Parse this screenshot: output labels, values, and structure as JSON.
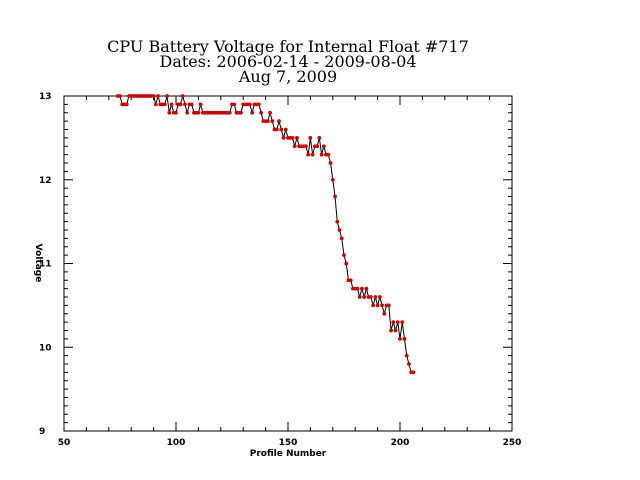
{
  "chart_data": {
    "type": "line",
    "title_lines": [
      "CPU Battery Voltage for Internal Float #717",
      "Dates:  2006-02-14 -  2009-08-04",
      "Aug  7, 2009"
    ],
    "xlabel": "Profile Number",
    "ylabel": "Voltage",
    "xlim": [
      50,
      250
    ],
    "ylim": [
      9,
      13
    ],
    "xticks": [
      50,
      100,
      150,
      200,
      250
    ],
    "yticks": [
      9,
      10,
      11,
      12,
      13
    ],
    "x_tick_labels": [
      "50",
      "100",
      "150",
      "200",
      "250"
    ],
    "y_tick_labels": [
      "9",
      "10",
      "11",
      "12",
      "13"
    ],
    "grid": false,
    "colors": {
      "line": "#000000",
      "markers": "#cc0000"
    },
    "series": [
      {
        "x": [
          74,
          75,
          76,
          77,
          78,
          79,
          80,
          81,
          82,
          83,
          84,
          85,
          86,
          87,
          88,
          89,
          90,
          91,
          92,
          93,
          94,
          95,
          96,
          97,
          98,
          99,
          100,
          101,
          102,
          103,
          104,
          105,
          106,
          107,
          108,
          109,
          110,
          111,
          112,
          113,
          114,
          115,
          116,
          117,
          118,
          119,
          120,
          121,
          122,
          123,
          124,
          125,
          126,
          127,
          128,
          129,
          130,
          131,
          132,
          133,
          134,
          135,
          136,
          137,
          138,
          139,
          140,
          141,
          142,
          143,
          144,
          145,
          146,
          147,
          148,
          149,
          150,
          151,
          152,
          153,
          154,
          155,
          156,
          157,
          158,
          159,
          160,
          161,
          162,
          163,
          164,
          165,
          166,
          167,
          168,
          169,
          170,
          171,
          172,
          173,
          174,
          175,
          176,
          177,
          178,
          179,
          180,
          181,
          182,
          183,
          184,
          185,
          186,
          187,
          188,
          189,
          190,
          191,
          192,
          193,
          194,
          195,
          196,
          197,
          198,
          199,
          200,
          201,
          202,
          203,
          204,
          205,
          206
        ],
        "y": [
          13.0,
          13.0,
          12.9,
          12.9,
          12.9,
          13.0,
          13.0,
          13.0,
          13.0,
          13.0,
          13.0,
          13.0,
          13.0,
          13.0,
          13.0,
          13.0,
          13.0,
          12.9,
          13.0,
          12.9,
          12.9,
          12.9,
          13.0,
          12.8,
          12.9,
          12.8,
          12.8,
          12.9,
          12.9,
          13.0,
          12.9,
          12.8,
          12.9,
          12.9,
          12.8,
          12.8,
          12.8,
          12.9,
          12.8,
          12.8,
          12.8,
          12.8,
          12.8,
          12.8,
          12.8,
          12.8,
          12.8,
          12.8,
          12.8,
          12.8,
          12.8,
          12.9,
          12.9,
          12.8,
          12.8,
          12.8,
          12.9,
          12.9,
          12.9,
          12.9,
          12.8,
          12.9,
          12.9,
          12.9,
          12.8,
          12.7,
          12.7,
          12.7,
          12.8,
          12.7,
          12.6,
          12.6,
          12.7,
          12.6,
          12.5,
          12.6,
          12.5,
          12.5,
          12.5,
          12.4,
          12.5,
          12.4,
          12.4,
          12.4,
          12.4,
          12.3,
          12.5,
          12.3,
          12.4,
          12.4,
          12.5,
          12.3,
          12.4,
          12.3,
          12.3,
          12.2,
          12.0,
          11.8,
          11.5,
          11.4,
          11.3,
          11.1,
          11.0,
          10.8,
          10.8,
          10.7,
          10.7,
          10.7,
          10.6,
          10.7,
          10.6,
          10.7,
          10.6,
          10.6,
          10.5,
          10.6,
          10.5,
          10.6,
          10.5,
          10.4,
          10.5,
          10.5,
          10.2,
          10.3,
          10.2,
          10.3,
          10.1,
          10.3,
          10.1,
          9.9,
          9.8,
          9.7,
          9.7
        ]
      }
    ]
  }
}
